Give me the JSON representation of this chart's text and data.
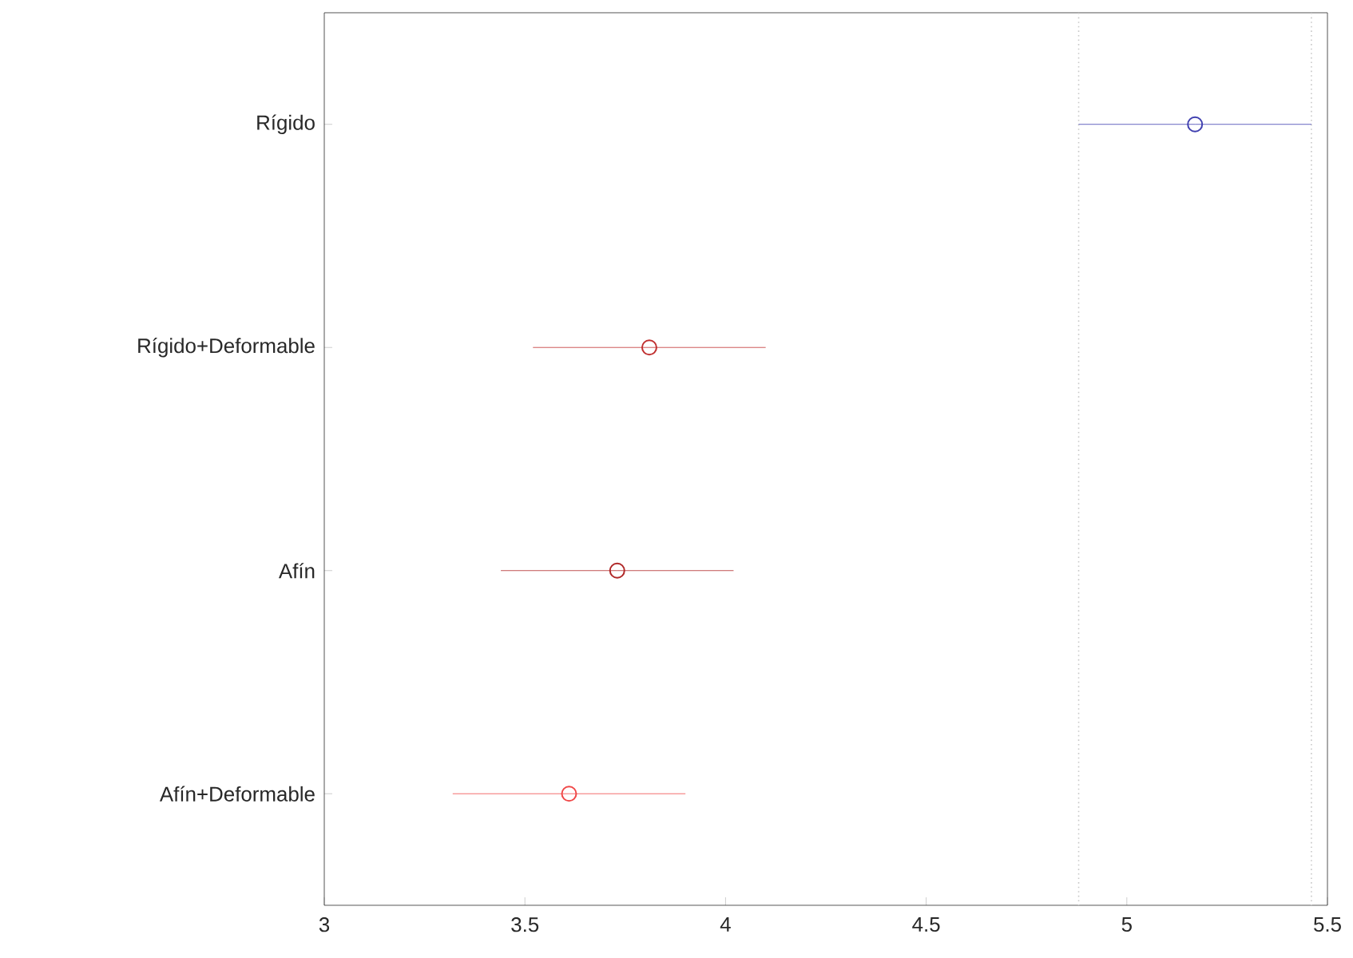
{
  "chart_data": {
    "type": "scatter",
    "orientation": "horizontal",
    "marker": "circle",
    "categories": [
      "Rígido",
      "Rígido+Deformable",
      "Afín",
      "Afín+Deformable"
    ],
    "values": [
      5.17,
      3.81,
      3.73,
      3.61
    ],
    "errors": [
      0.29,
      0.29,
      0.29,
      0.29
    ],
    "colors": [
      "#4040b0",
      "#c03030",
      "#b02828",
      "#f04848"
    ],
    "xlim": [
      3,
      5.5
    ],
    "xticks": [
      3,
      3.5,
      4,
      4.5,
      5,
      5.5
    ],
    "ref_lines": [
      {
        "axis": "x",
        "value": 4.88,
        "color": "#c8c8c8",
        "line_style": "dotted"
      },
      {
        "axis": "x",
        "value": 5.46,
        "color": "#c8c8c8",
        "line_style": "dotted"
      }
    ]
  }
}
